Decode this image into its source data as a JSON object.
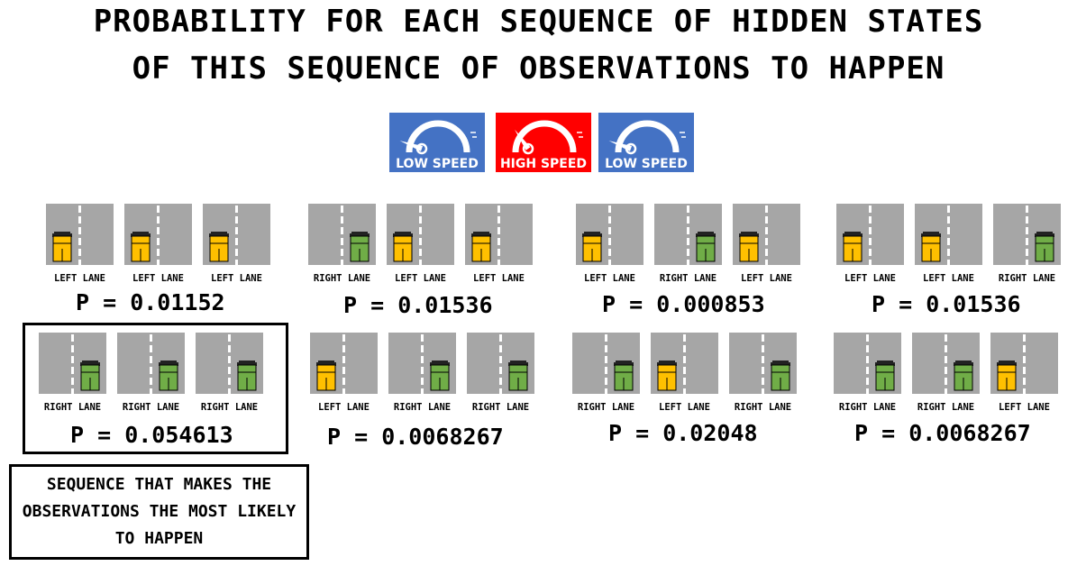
{
  "title": {
    "line1": "PROBABILITY FOR EACH SEQUENCE OF HIDDEN STATES",
    "line2": "OF THIS SEQUENCE OF OBSERVATIONS TO HAPPEN"
  },
  "colors": {
    "low_speed": "#4472c4",
    "high_speed": "#ff0000",
    "left_car": "#ffc000",
    "right_car": "#70ad47",
    "road": "#a6a6a6"
  },
  "observations": [
    {
      "label": "LOW SPEED",
      "kind": "low"
    },
    {
      "label": "HIGH SPEED",
      "kind": "high"
    },
    {
      "label": "LOW SPEED",
      "kind": "low"
    }
  ],
  "lane_labels": {
    "L": "LEFT LANE",
    "R": "RIGHT LANE"
  },
  "sequences": [
    {
      "lanes": [
        "L",
        "L",
        "L"
      ],
      "probability": "P = 0.01152"
    },
    {
      "lanes": [
        "R",
        "L",
        "L"
      ],
      "probability": "P = 0.01536"
    },
    {
      "lanes": [
        "L",
        "R",
        "L"
      ],
      "probability": "P = 0.000853"
    },
    {
      "lanes": [
        "L",
        "L",
        "R"
      ],
      "probability": "P = 0.01536"
    },
    {
      "lanes": [
        "R",
        "R",
        "R"
      ],
      "probability": "P = 0.054613"
    },
    {
      "lanes": [
        "L",
        "R",
        "R"
      ],
      "probability": "P = 0.0068267"
    },
    {
      "lanes": [
        "R",
        "L",
        "R"
      ],
      "probability": "P = 0.02048"
    },
    {
      "lanes": [
        "R",
        "R",
        "L"
      ],
      "probability": "P = 0.0068267"
    }
  ],
  "best_index": 4,
  "note": "SEQUENCE THAT MAKES THE OBSERVATIONS THE MOST LIKELY TO HAPPEN"
}
